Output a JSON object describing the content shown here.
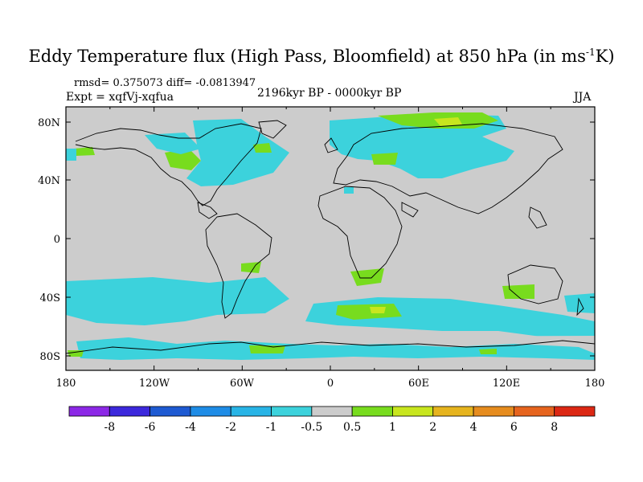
{
  "title": {
    "main": "Eddy Temperature flux (High Pass, Bloomfield) at 850 hPa (in ms",
    "sup": "-1",
    "end": "K)"
  },
  "stats": "rmsd= 0.375073 diff= -0.0813947",
  "experiment": "Expt = xqfVj-xqfua",
  "period": "2196kyr BP - 0000kyr BP",
  "season": "JJA",
  "map": {
    "background_color": "#cccccc",
    "lon_ticks": [
      "180",
      "120W",
      "60W",
      "0",
      "60E",
      "120E",
      "180"
    ],
    "lat_ticks": [
      "80N",
      "40N",
      "0",
      "40S",
      "80S"
    ]
  },
  "colorbar": {
    "labels": [
      "-8",
      "-6",
      "-4",
      "-2",
      "-1",
      "-0.5",
      "0.5",
      "1",
      "2",
      "4",
      "6",
      "8"
    ],
    "colors": [
      "#8c28e6",
      "#3c28dc",
      "#1e5ad2",
      "#1e8ce6",
      "#28b4e6",
      "#3cd2dc",
      "#cccccc",
      "#78dc1e",
      "#c8e61e",
      "#e6b41e",
      "#e68c1e",
      "#e6641e",
      "#dc2814"
    ]
  }
}
